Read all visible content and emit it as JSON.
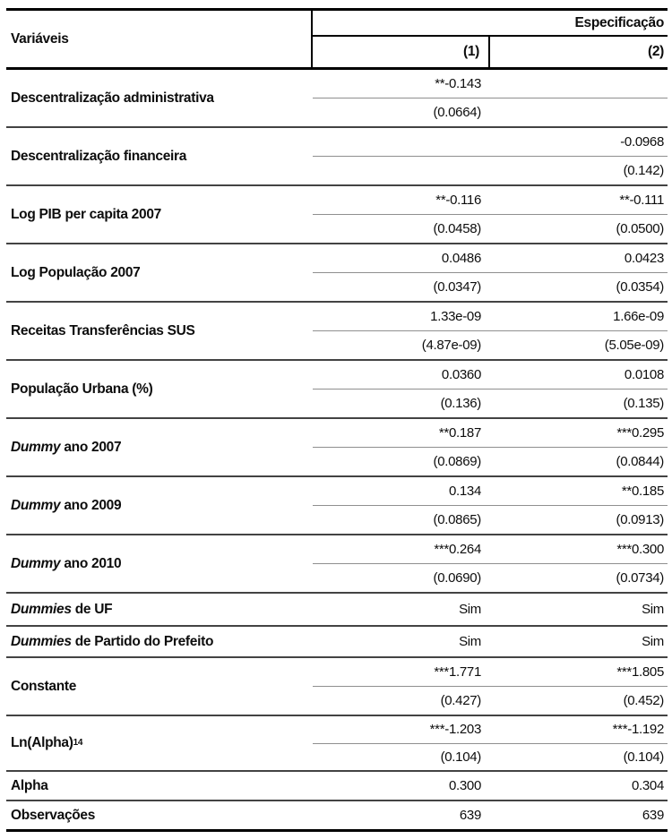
{
  "table": {
    "header": {
      "variables": "Variáveis",
      "specification": "Especificação",
      "col1": "(1)",
      "col2": "(2)"
    },
    "rows": [
      {
        "label": "Descentralização administrativa",
        "coef1": "**-0.143",
        "se1": "(0.0664)",
        "coef2": "",
        "se2": ""
      },
      {
        "label": "Descentralização financeira",
        "coef1": "",
        "se1": "",
        "coef2": "-0.0968",
        "se2": "(0.142)"
      },
      {
        "label": "Log PIB per capita 2007",
        "coef1": "**-0.116",
        "se1": "(0.0458)",
        "coef2": "**-0.111",
        "se2": "(0.0500)"
      },
      {
        "label": "Log População 2007",
        "coef1": "0.0486",
        "se1": "(0.0347)",
        "coef2": "0.0423",
        "se2": "(0.0354)"
      },
      {
        "label": "Receitas Transferências SUS",
        "coef1": "1.33e-09",
        "se1": "(4.87e-09)",
        "coef2": "1.66e-09",
        "se2": "(5.05e-09)"
      },
      {
        "label": "População Urbana (%)",
        "coef1": "0.0360",
        "se1": "(0.136)",
        "coef2": "0.0108",
        "se2": "(0.135)"
      },
      {
        "label_italic": "Dummy",
        "label": " ano 2007",
        "coef1": "**0.187",
        "se1": "(0.0869)",
        "coef2": "***0.295",
        "se2": "(0.0844)"
      },
      {
        "label_italic": "Dummy",
        "label": " ano 2009",
        "coef1": "0.134",
        "se1": "(0.0865)",
        "coef2": "**0.185",
        "se2": "(0.0913)"
      },
      {
        "label_italic": "Dummy",
        "label": " ano 2010",
        "coef1": "***0.264",
        "se1": "(0.0690)",
        "coef2": "***0.300",
        "se2": "(0.0734)"
      },
      {
        "label_italic": "Dummies",
        "label": " de UF",
        "v1": "Sim",
        "v2": "Sim"
      },
      {
        "label_italic": "Dummies",
        "label": " de Partido do Prefeito",
        "v1": "Sim",
        "v2": "Sim"
      },
      {
        "label": "Constante",
        "coef1": "***1.771",
        "se1": "(0.427)",
        "coef2": "***1.805",
        "se2": "(0.452)"
      },
      {
        "label": "Ln(Alpha)",
        "label_sup": "14",
        "coef1": "***-1.203",
        "se1": "(0.104)",
        "coef2": "***-1.192",
        "se2": "(0.104)"
      },
      {
        "label": "Alpha",
        "v1": "0.300",
        "v2": "0.304"
      },
      {
        "label": "Observações",
        "v1": "639",
        "v2": "639"
      }
    ],
    "colors": {
      "border_heavy": "#000000",
      "row_separator": "#434343",
      "inner_line": "#8f8f8f",
      "text": "#0d0d0d"
    }
  }
}
